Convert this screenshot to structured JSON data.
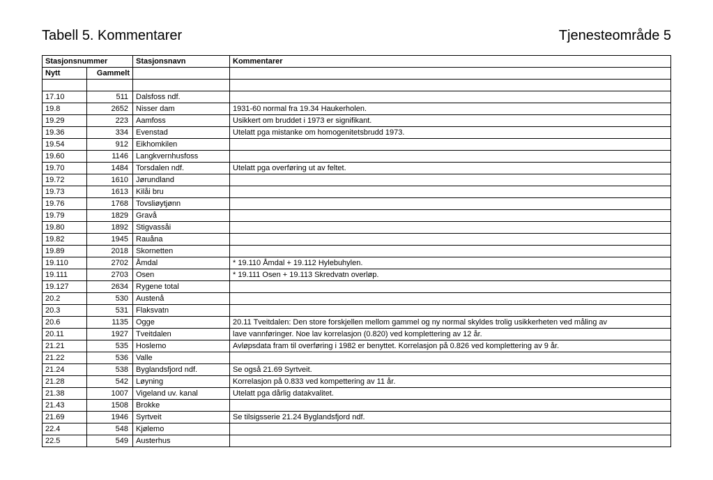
{
  "header": {
    "left": "Tabell 5. Kommentarer",
    "right": "Tjenesteområde 5"
  },
  "table": {
    "columns": {
      "stasjonsnummer": "Stasjonsnummer",
      "stasjonsnavn": "Stasjonsnavn",
      "kommentarer": "Kommentarer",
      "nytt": "Nytt",
      "gammelt": "Gammelt"
    },
    "rows": [
      {
        "nytt": "",
        "gammelt": "",
        "navn": "",
        "komm": ""
      },
      {
        "nytt": "17.10",
        "gammelt": "511",
        "navn": "Dalsfoss ndf.",
        "komm": ""
      },
      {
        "nytt": "19.8",
        "gammelt": "2652",
        "navn": "Nisser dam",
        "komm": "1931-60 normal fra 19.34 Haukerholen."
      },
      {
        "nytt": "19.29",
        "gammelt": "223",
        "navn": "Aamfoss",
        "komm": "Usikkert om bruddet i 1973 er signifikant."
      },
      {
        "nytt": "19.36",
        "gammelt": "334",
        "navn": "Evenstad",
        "komm": "Utelatt pga mistanke om homogenitetsbrudd 1973."
      },
      {
        "nytt": "19.54",
        "gammelt": "912",
        "navn": "Eikhomkilen",
        "komm": ""
      },
      {
        "nytt": "19.60",
        "gammelt": "1146",
        "navn": "Langkvernhusfoss",
        "komm": ""
      },
      {
        "nytt": "19.70",
        "gammelt": "1484",
        "navn": "Torsdalen ndf.",
        "komm": "Utelatt pga overføring ut av feltet."
      },
      {
        "nytt": "19.72",
        "gammelt": "1610",
        "navn": "Jørundland",
        "komm": ""
      },
      {
        "nytt": "19.73",
        "gammelt": "1613",
        "navn": "Kilåi bru",
        "komm": ""
      },
      {
        "nytt": "19.76",
        "gammelt": "1768",
        "navn": "Tovsliøytjønn",
        "komm": ""
      },
      {
        "nytt": "19.79",
        "gammelt": "1829",
        "navn": "Gravå",
        "komm": ""
      },
      {
        "nytt": "19.80",
        "gammelt": "1892",
        "navn": "Stigvassåi",
        "komm": ""
      },
      {
        "nytt": "19.82",
        "gammelt": "1945",
        "navn": "Rauåna",
        "komm": ""
      },
      {
        "nytt": "19.89",
        "gammelt": "2018",
        "navn": "Skornetten",
        "komm": ""
      },
      {
        "nytt": "19.110",
        "gammelt": "2702",
        "navn": "Åmdal",
        "komm": "* 19.110 Åmdal + 19.112 Hylebuhylen."
      },
      {
        "nytt": "19.111",
        "gammelt": "2703",
        "navn": "Osen",
        "komm": "* 19.111 Osen + 19.113 Skredvatn overløp."
      },
      {
        "nytt": "19.127",
        "gammelt": "2634",
        "navn": "Rygene total",
        "komm": ""
      },
      {
        "nytt": "20.2",
        "gammelt": "530",
        "navn": "Austenå",
        "komm": ""
      },
      {
        "nytt": "20.3",
        "gammelt": "531",
        "navn": "Flaksvatn",
        "komm": ""
      },
      {
        "nytt": "20.6",
        "gammelt": "1135",
        "navn": "Ogge",
        "komm": "20.11 Tveitdalen: Den store forskjellen mellom gammel og ny normal skyldes trolig usikkerheten ved måling av"
      },
      {
        "nytt": "20.11",
        "gammelt": "1927",
        "navn": "Tveitdalen",
        "komm": "lave vannføringer. Noe lav korrelasjon (0.820) ved komplettering av 12 år."
      },
      {
        "nytt": "21.21",
        "gammelt": "535",
        "navn": "Hoslemo",
        "komm": "Avløpsdata fram til overføring i 1982 er benyttet. Korrelasjon på 0.826 ved komplettering av  9 år."
      },
      {
        "nytt": "21.22",
        "gammelt": "536",
        "navn": "Valle",
        "komm": ""
      },
      {
        "nytt": "21.24",
        "gammelt": "538",
        "navn": "Byglandsfjord ndf.",
        "komm": "Se også 21.69 Syrtveit."
      },
      {
        "nytt": "21.28",
        "gammelt": "542",
        "navn": "Løyning",
        "komm": "Korrelasjon på 0.833 ved kompettering av 11 år."
      },
      {
        "nytt": "21.38",
        "gammelt": "1007",
        "navn": "Vigeland uv. kanal",
        "komm": "Utelatt pga dårlig datakvalitet."
      },
      {
        "nytt": "21.43",
        "gammelt": "1508",
        "navn": "Brokke",
        "komm": ""
      },
      {
        "nytt": "21.69",
        "gammelt": "1946",
        "navn": "Syrtveit",
        "komm": "Se tilsigsserie 21.24 Byglandsfjord ndf."
      },
      {
        "nytt": "22.4",
        "gammelt": "548",
        "navn": "Kjølemo",
        "komm": ""
      },
      {
        "nytt": "22.5",
        "gammelt": "549",
        "navn": "Austerhus",
        "komm": ""
      }
    ]
  }
}
